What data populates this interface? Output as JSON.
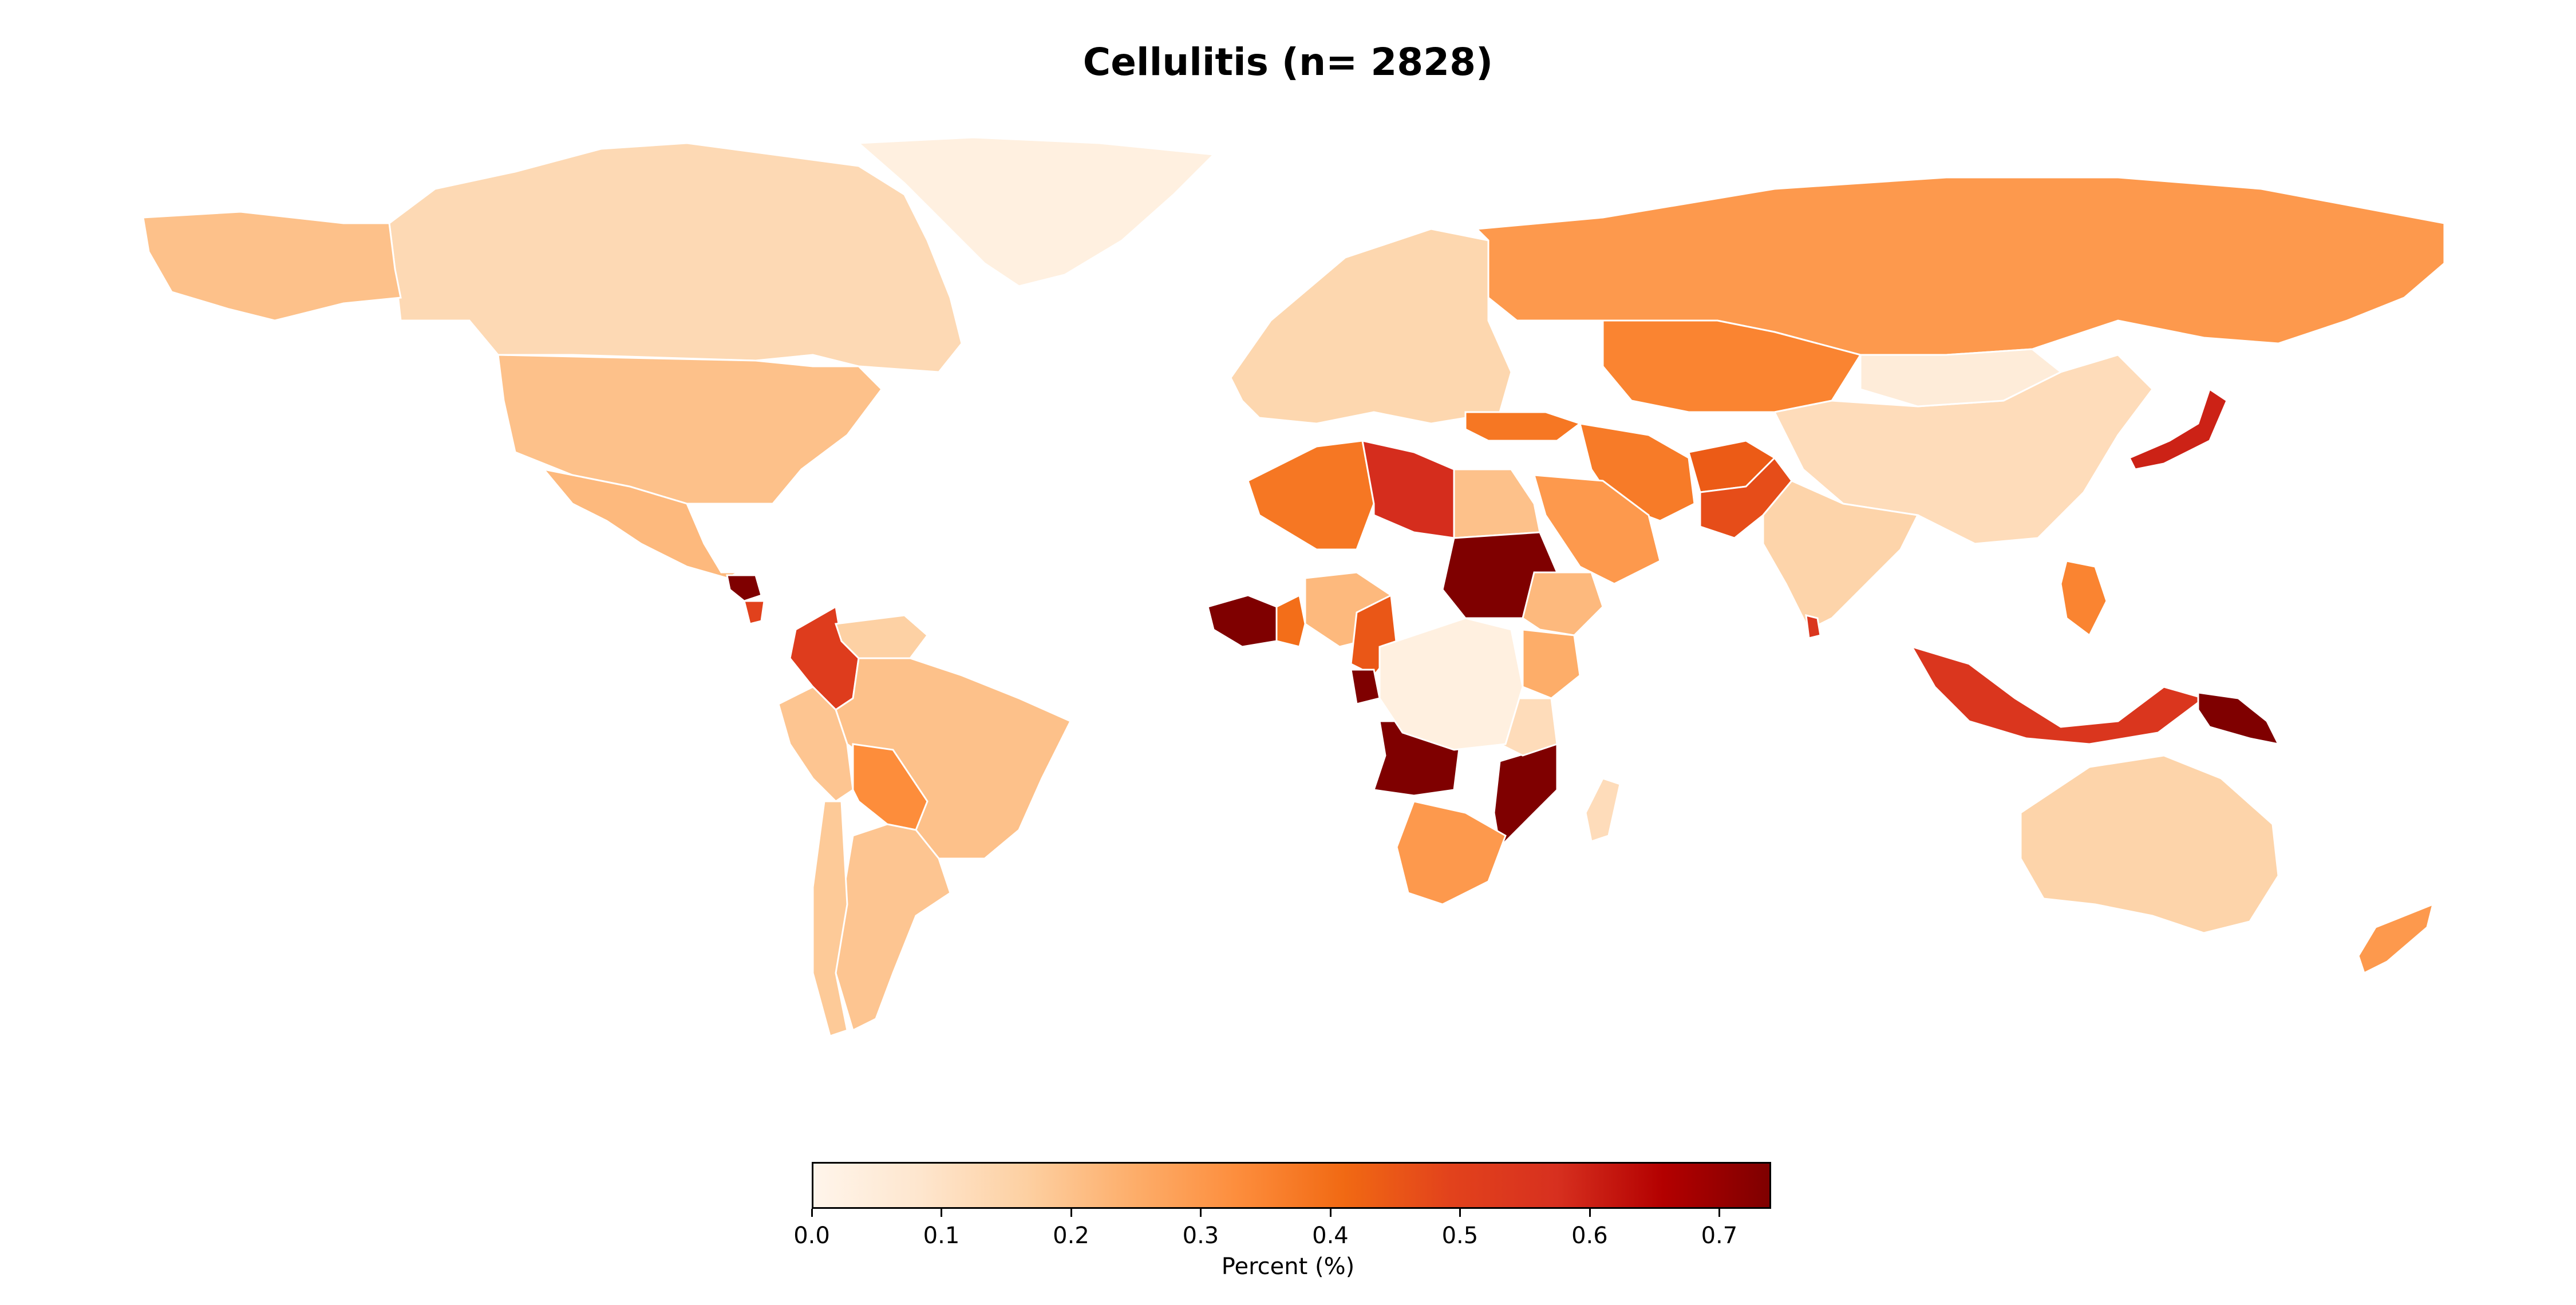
{
  "title": "Cellulitis (n= 2828)",
  "colorbar": {
    "label": "Percent (%)",
    "min": 0.0,
    "max": 0.74,
    "ticks": [
      "0.0",
      "0.1",
      "0.2",
      "0.3",
      "0.4",
      "0.5",
      "0.6",
      "0.7"
    ],
    "colors": [
      "#fff5eb",
      "#fee6ce",
      "#fdd0a2",
      "#fdae6b",
      "#fd8d3c",
      "#f16913",
      "#e2421c",
      "#d7301f",
      "#b30000",
      "#7f0000"
    ]
  },
  "chart_data": {
    "type": "choropleth",
    "title": "Cellulitis (n= 2828)",
    "colorbar_label": "Percent (%)",
    "value_range": [
      0.0,
      0.74
    ],
    "regions": [
      {
        "name": "Canada",
        "value": 0.13
      },
      {
        "name": "Alaska (USA)",
        "value": 0.2
      },
      {
        "name": "Greenland",
        "value": 0.03
      },
      {
        "name": "United States",
        "value": 0.2
      },
      {
        "name": "Mexico",
        "value": 0.22
      },
      {
        "name": "Honduras",
        "value": 0.74
      },
      {
        "name": "Nicaragua",
        "value": 0.5
      },
      {
        "name": "Colombia",
        "value": 0.52
      },
      {
        "name": "Venezuela",
        "value": 0.16
      },
      {
        "name": "Brazil",
        "value": 0.2
      },
      {
        "name": "Bolivia",
        "value": 0.33
      },
      {
        "name": "Peru",
        "value": 0.19
      },
      {
        "name": "Argentina",
        "value": 0.19
      },
      {
        "name": "Chile",
        "value": 0.18
      },
      {
        "name": "Europe",
        "value": 0.14
      },
      {
        "name": "Russia",
        "value": 0.3
      },
      {
        "name": "Kazakhstan",
        "value": 0.35
      },
      {
        "name": "Turkey",
        "value": 0.38
      },
      {
        "name": "Iran",
        "value": 0.37
      },
      {
        "name": "Afghanistan",
        "value": 0.44
      },
      {
        "name": "Pakistan",
        "value": 0.47
      },
      {
        "name": "China",
        "value": 0.12
      },
      {
        "name": "Mongolia",
        "value": 0.05
      },
      {
        "name": "India",
        "value": 0.15
      },
      {
        "name": "Japan",
        "value": 0.6
      },
      {
        "name": "Indonesia",
        "value": 0.55
      },
      {
        "name": "Papua New Guinea",
        "value": 0.74
      },
      {
        "name": "Philippines",
        "value": 0.35
      },
      {
        "name": "Australia",
        "value": 0.15
      },
      {
        "name": "New Zealand",
        "value": 0.3
      },
      {
        "name": "Algeria",
        "value": 0.38
      },
      {
        "name": "Libya",
        "value": 0.58
      },
      {
        "name": "Egypt",
        "value": 0.2
      },
      {
        "name": "Sudan",
        "value": 0.74
      },
      {
        "name": "Saudi Arabia",
        "value": 0.3
      },
      {
        "name": "Nigeria",
        "value": 0.22
      },
      {
        "name": "Ghana",
        "value": 0.4
      },
      {
        "name": "Cote d'Ivoire",
        "value": 0.74
      },
      {
        "name": "Cameroon",
        "value": 0.45
      },
      {
        "name": "Gabon",
        "value": 0.74
      },
      {
        "name": "Angola",
        "value": 0.74
      },
      {
        "name": "Mozambique",
        "value": 0.74
      },
      {
        "name": "Ethiopia",
        "value": 0.22
      },
      {
        "name": "Kenya",
        "value": 0.25
      },
      {
        "name": "Tanzania",
        "value": 0.12
      },
      {
        "name": "DR Congo",
        "value": 0.03
      },
      {
        "name": "South Africa",
        "value": 0.3
      },
      {
        "name": "Madagascar",
        "value": 0.12
      },
      {
        "name": "Sri Lanka",
        "value": 0.55
      }
    ]
  }
}
